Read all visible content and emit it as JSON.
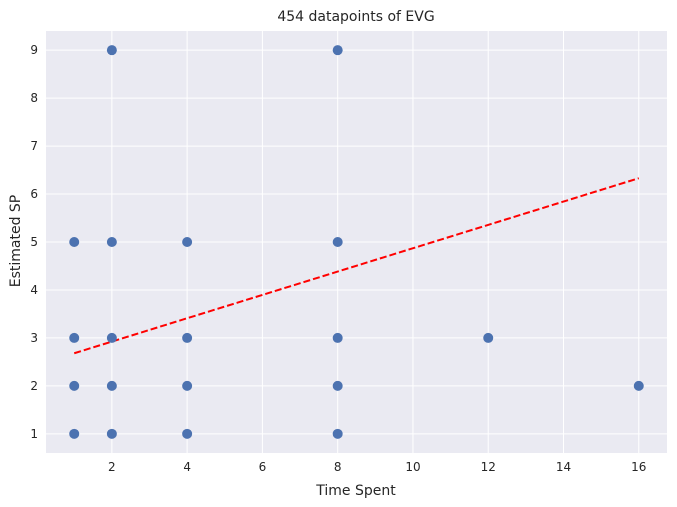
{
  "chart_data": {
    "type": "scatter",
    "title": "454 datapoints of EVG",
    "xlabel": "Time Spent",
    "ylabel": "Estimated SP",
    "xlim": [
      0.25,
      16.75
    ],
    "ylim": [
      0.6,
      9.4
    ],
    "xticks": [
      2,
      4,
      6,
      8,
      10,
      12,
      14,
      16
    ],
    "yticks": [
      1,
      2,
      3,
      4,
      5,
      6,
      7,
      8,
      9
    ],
    "grid": true,
    "legend": "none",
    "series": [
      {
        "points": [
          [
            1,
            1
          ],
          [
            1,
            2
          ],
          [
            1,
            3
          ],
          [
            1,
            5
          ],
          [
            2,
            1
          ],
          [
            2,
            2
          ],
          [
            2,
            3
          ],
          [
            2,
            5
          ],
          [
            2,
            9
          ],
          [
            4,
            1
          ],
          [
            4,
            2
          ],
          [
            4,
            3
          ],
          [
            4,
            5
          ],
          [
            8,
            1
          ],
          [
            8,
            2
          ],
          [
            8,
            3
          ],
          [
            8,
            5
          ],
          [
            8,
            9
          ],
          [
            12,
            3
          ],
          [
            16,
            2
          ]
        ],
        "color": "#4c72b0"
      }
    ],
    "trendline": {
      "x": [
        1,
        16
      ],
      "y": [
        2.68,
        6.33
      ],
      "color": "#ff0000",
      "style": "dashed"
    },
    "colors": {
      "background": "#eaeaf2",
      "grid": "#ffffff",
      "text": "#262626"
    }
  }
}
